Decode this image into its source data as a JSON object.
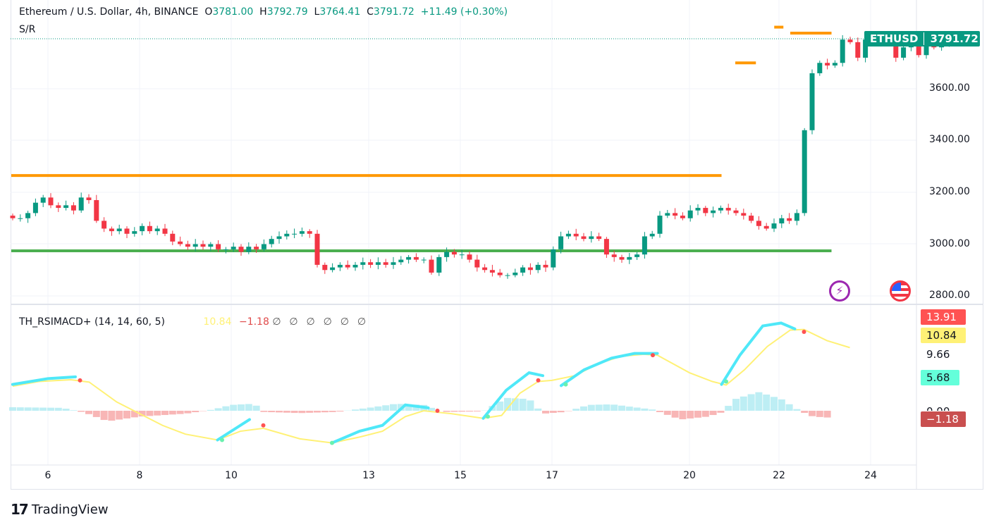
{
  "header": {
    "symbol": "Ethereum / U.S. Dollar, 4h, BINANCE",
    "o_label": "O",
    "o": "3781.00",
    "h_label": "H",
    "h": "3792.79",
    "l_label": "L",
    "l": "3764.41",
    "c_label": "C",
    "c": "3791.72",
    "change": "+11.49 (+0.30%)",
    "study": "S/R"
  },
  "price_tag": {
    "symbol": "ETHUSD",
    "price": "3791.72"
  },
  "price_axis": [
    "3600.00",
    "3400.00",
    "3200.00",
    "3000.00",
    "2800.00"
  ],
  "time_axis": [
    "6",
    "8",
    "10",
    "13",
    "15",
    "17",
    "20",
    "22",
    "24"
  ],
  "indicator": {
    "name": "TH_RSIMACD+ (14, 14, 60, 5)",
    "v1": "10.84",
    "v2": "−1.18",
    "nulls": [
      "∅",
      "∅",
      "∅",
      "∅",
      "∅",
      "∅"
    ],
    "tags": {
      "a": "13.91",
      "b": "10.84",
      "c": "9.66",
      "d": "5.68",
      "e": "0.00",
      "f": "−1.18"
    }
  },
  "logo": "TradingView",
  "colors": {
    "up": "#089981",
    "down": "#f23645",
    "support": "#4caf50",
    "resistance": "#ff9800",
    "signal": "#fff176",
    "rsi": "#4fe8f8"
  },
  "chart_data": {
    "type": "candlestick",
    "interval": "4h",
    "ylim": [
      2800,
      3800
    ],
    "close": [
      3100,
      3100,
      3120,
      3160,
      3180,
      3150,
      3140,
      3150,
      3130,
      3180,
      3170,
      3090,
      3060,
      3050,
      3060,
      3040,
      3050,
      3070,
      3050,
      3060,
      3040,
      3010,
      3000,
      2990,
      3000,
      2990,
      3000,
      2980,
      2980,
      2990,
      2970,
      2990,
      2980,
      3000,
      3020,
      3030,
      3040,
      3040,
      3050,
      3040,
      2920,
      2900,
      2910,
      2920,
      2910,
      2920,
      2930,
      2920,
      2930,
      2920,
      2930,
      2940,
      2950,
      2940,
      2940,
      2890,
      2950,
      2970,
      2960,
      2960,
      2940,
      2910,
      2900,
      2890,
      2880,
      2880,
      2890,
      2910,
      2900,
      2920,
      2910,
      2980,
      3030,
      3040,
      3030,
      3020,
      3030,
      3020,
      2960,
      2950,
      2940,
      2950,
      2960,
      3030,
      3040,
      3110,
      3120,
      3110,
      3100,
      3130,
      3140,
      3120,
      3130,
      3140,
      3130,
      3120,
      3110,
      3090,
      3070,
      3060,
      3080,
      3100,
      3090,
      3120,
      3440,
      3660,
      3700,
      3690,
      3700,
      3790,
      3780,
      3720,
      3790,
      3800,
      3780,
      3790,
      3720,
      3760,
      3780,
      3730,
      3780,
      3760,
      3780,
      3792
    ],
    "levels": [
      {
        "price": 3265,
        "type": "resistance",
        "from_day": 5.2,
        "to_day": 20.7
      },
      {
        "price": 2974,
        "type": "support",
        "from_day": 5.2,
        "to_day": 23.1
      },
      {
        "price": 3700,
        "type": "resistance",
        "from_day": 21,
        "to_day": 21.45
      },
      {
        "price": 3838,
        "type": "resistance",
        "from_day": 21.85,
        "to_day": 22.05
      },
      {
        "price": 3815,
        "type": "resistance",
        "from_day": 22.2,
        "to_day": 23.1
      }
    ],
    "signal": [
      [
        5.23,
        4.2
      ],
      [
        5.8,
        5
      ],
      [
        6.5,
        5.3
      ],
      [
        6.9,
        4.9
      ],
      [
        7.5,
        1.5
      ],
      [
        8,
        -0.5
      ],
      [
        8.5,
        -2.5
      ],
      [
        9,
        -4
      ],
      [
        9.7,
        -5
      ],
      [
        10.2,
        -3.5
      ],
      [
        10.7,
        -3
      ],
      [
        11.5,
        -4.8
      ],
      [
        12.2,
        -5.5
      ],
      [
        12.8,
        -4.5
      ],
      [
        13.3,
        -3.5
      ],
      [
        13.8,
        -1
      ],
      [
        14.2,
        0
      ],
      [
        14.8,
        -0.5
      ],
      [
        15.5,
        -1.3
      ],
      [
        15.9,
        -0.8
      ],
      [
        16.3,
        3
      ],
      [
        16.7,
        5
      ],
      [
        17,
        5.2
      ],
      [
        17.5,
        6
      ],
      [
        18,
        8
      ],
      [
        18.5,
        9.3
      ],
      [
        19,
        9.66
      ],
      [
        19.3,
        9.5
      ],
      [
        20,
        6.5
      ],
      [
        20.5,
        5
      ],
      [
        20.8,
        4.4
      ],
      [
        21.2,
        7
      ],
      [
        21.7,
        11
      ],
      [
        22.2,
        13.8
      ],
      [
        22.5,
        13.9
      ],
      [
        23,
        12
      ],
      [
        23.5,
        10.8
      ]
    ],
    "rsi_segments": [
      [
        [
          5.23,
          4.5
        ],
        [
          6,
          5.5
        ],
        [
          6.6,
          5.8
        ]
      ],
      [
        [
          9.7,
          -5
        ],
        [
          10.4,
          -1.5
        ]
      ],
      [
        [
          12.2,
          -5.5
        ],
        [
          12.8,
          -3.5
        ],
        [
          13.3,
          -2.5
        ],
        [
          13.8,
          1
        ],
        [
          14.3,
          0.5
        ]
      ],
      [
        [
          15.5,
          -1.3
        ],
        [
          16,
          3.5
        ],
        [
          16.5,
          6.5
        ],
        [
          16.8,
          6
        ]
      ],
      [
        [
          17.2,
          4.3
        ],
        [
          17.7,
          7
        ],
        [
          18.3,
          9
        ],
        [
          18.8,
          9.8
        ],
        [
          19.3,
          9.8
        ]
      ],
      [
        [
          20.7,
          4.5
        ],
        [
          21.1,
          9.5
        ],
        [
          21.6,
          14.5
        ],
        [
          22,
          15
        ],
        [
          22.3,
          14
        ]
      ]
    ],
    "cross_dots": [
      [
        6.7,
        5.2,
        "down"
      ],
      [
        9.8,
        -5,
        "up"
      ],
      [
        10.7,
        -2.5,
        "down"
      ],
      [
        12.2,
        -5.5,
        "up"
      ],
      [
        14.5,
        0,
        "down"
      ],
      [
        15.6,
        -1,
        "up"
      ],
      [
        16.7,
        5.2,
        "down"
      ],
      [
        17.3,
        4.5,
        "up"
      ],
      [
        19.2,
        9.5,
        "down"
      ],
      [
        20.8,
        5,
        "up"
      ],
      [
        22.5,
        13.5,
        "down"
      ]
    ],
    "histogram": [
      [
        5.23,
        0.6
      ],
      [
        6.3,
        0.5
      ],
      [
        6.8,
        -0.3
      ],
      [
        7.3,
        -1.8
      ],
      [
        8,
        -1
      ],
      [
        9,
        -0.5
      ],
      [
        9.6,
        0.2
      ],
      [
        10,
        1
      ],
      [
        10.5,
        1.2
      ],
      [
        10.7,
        -0.2
      ],
      [
        11.5,
        -0.4
      ],
      [
        12.3,
        -0.2
      ],
      [
        13,
        0.5
      ],
      [
        13.6,
        1.2
      ],
      [
        14.2,
        1
      ],
      [
        14.6,
        -0.2
      ],
      [
        15.5,
        -0.1
      ],
      [
        16,
        2.2
      ],
      [
        16.5,
        2
      ],
      [
        16.8,
        -0.5
      ],
      [
        17.3,
        -0.2
      ],
      [
        17.8,
        1
      ],
      [
        18.3,
        1.1
      ],
      [
        19.2,
        0.2
      ],
      [
        19.8,
        -1.5
      ],
      [
        20.4,
        -1
      ],
      [
        20.7,
        -0.3
      ],
      [
        21,
        2
      ],
      [
        21.5,
        3.2
      ],
      [
        22,
        2
      ],
      [
        22.4,
        0
      ],
      [
        22.7,
        -1
      ],
      [
        23.1,
        -1.2
      ]
    ]
  }
}
